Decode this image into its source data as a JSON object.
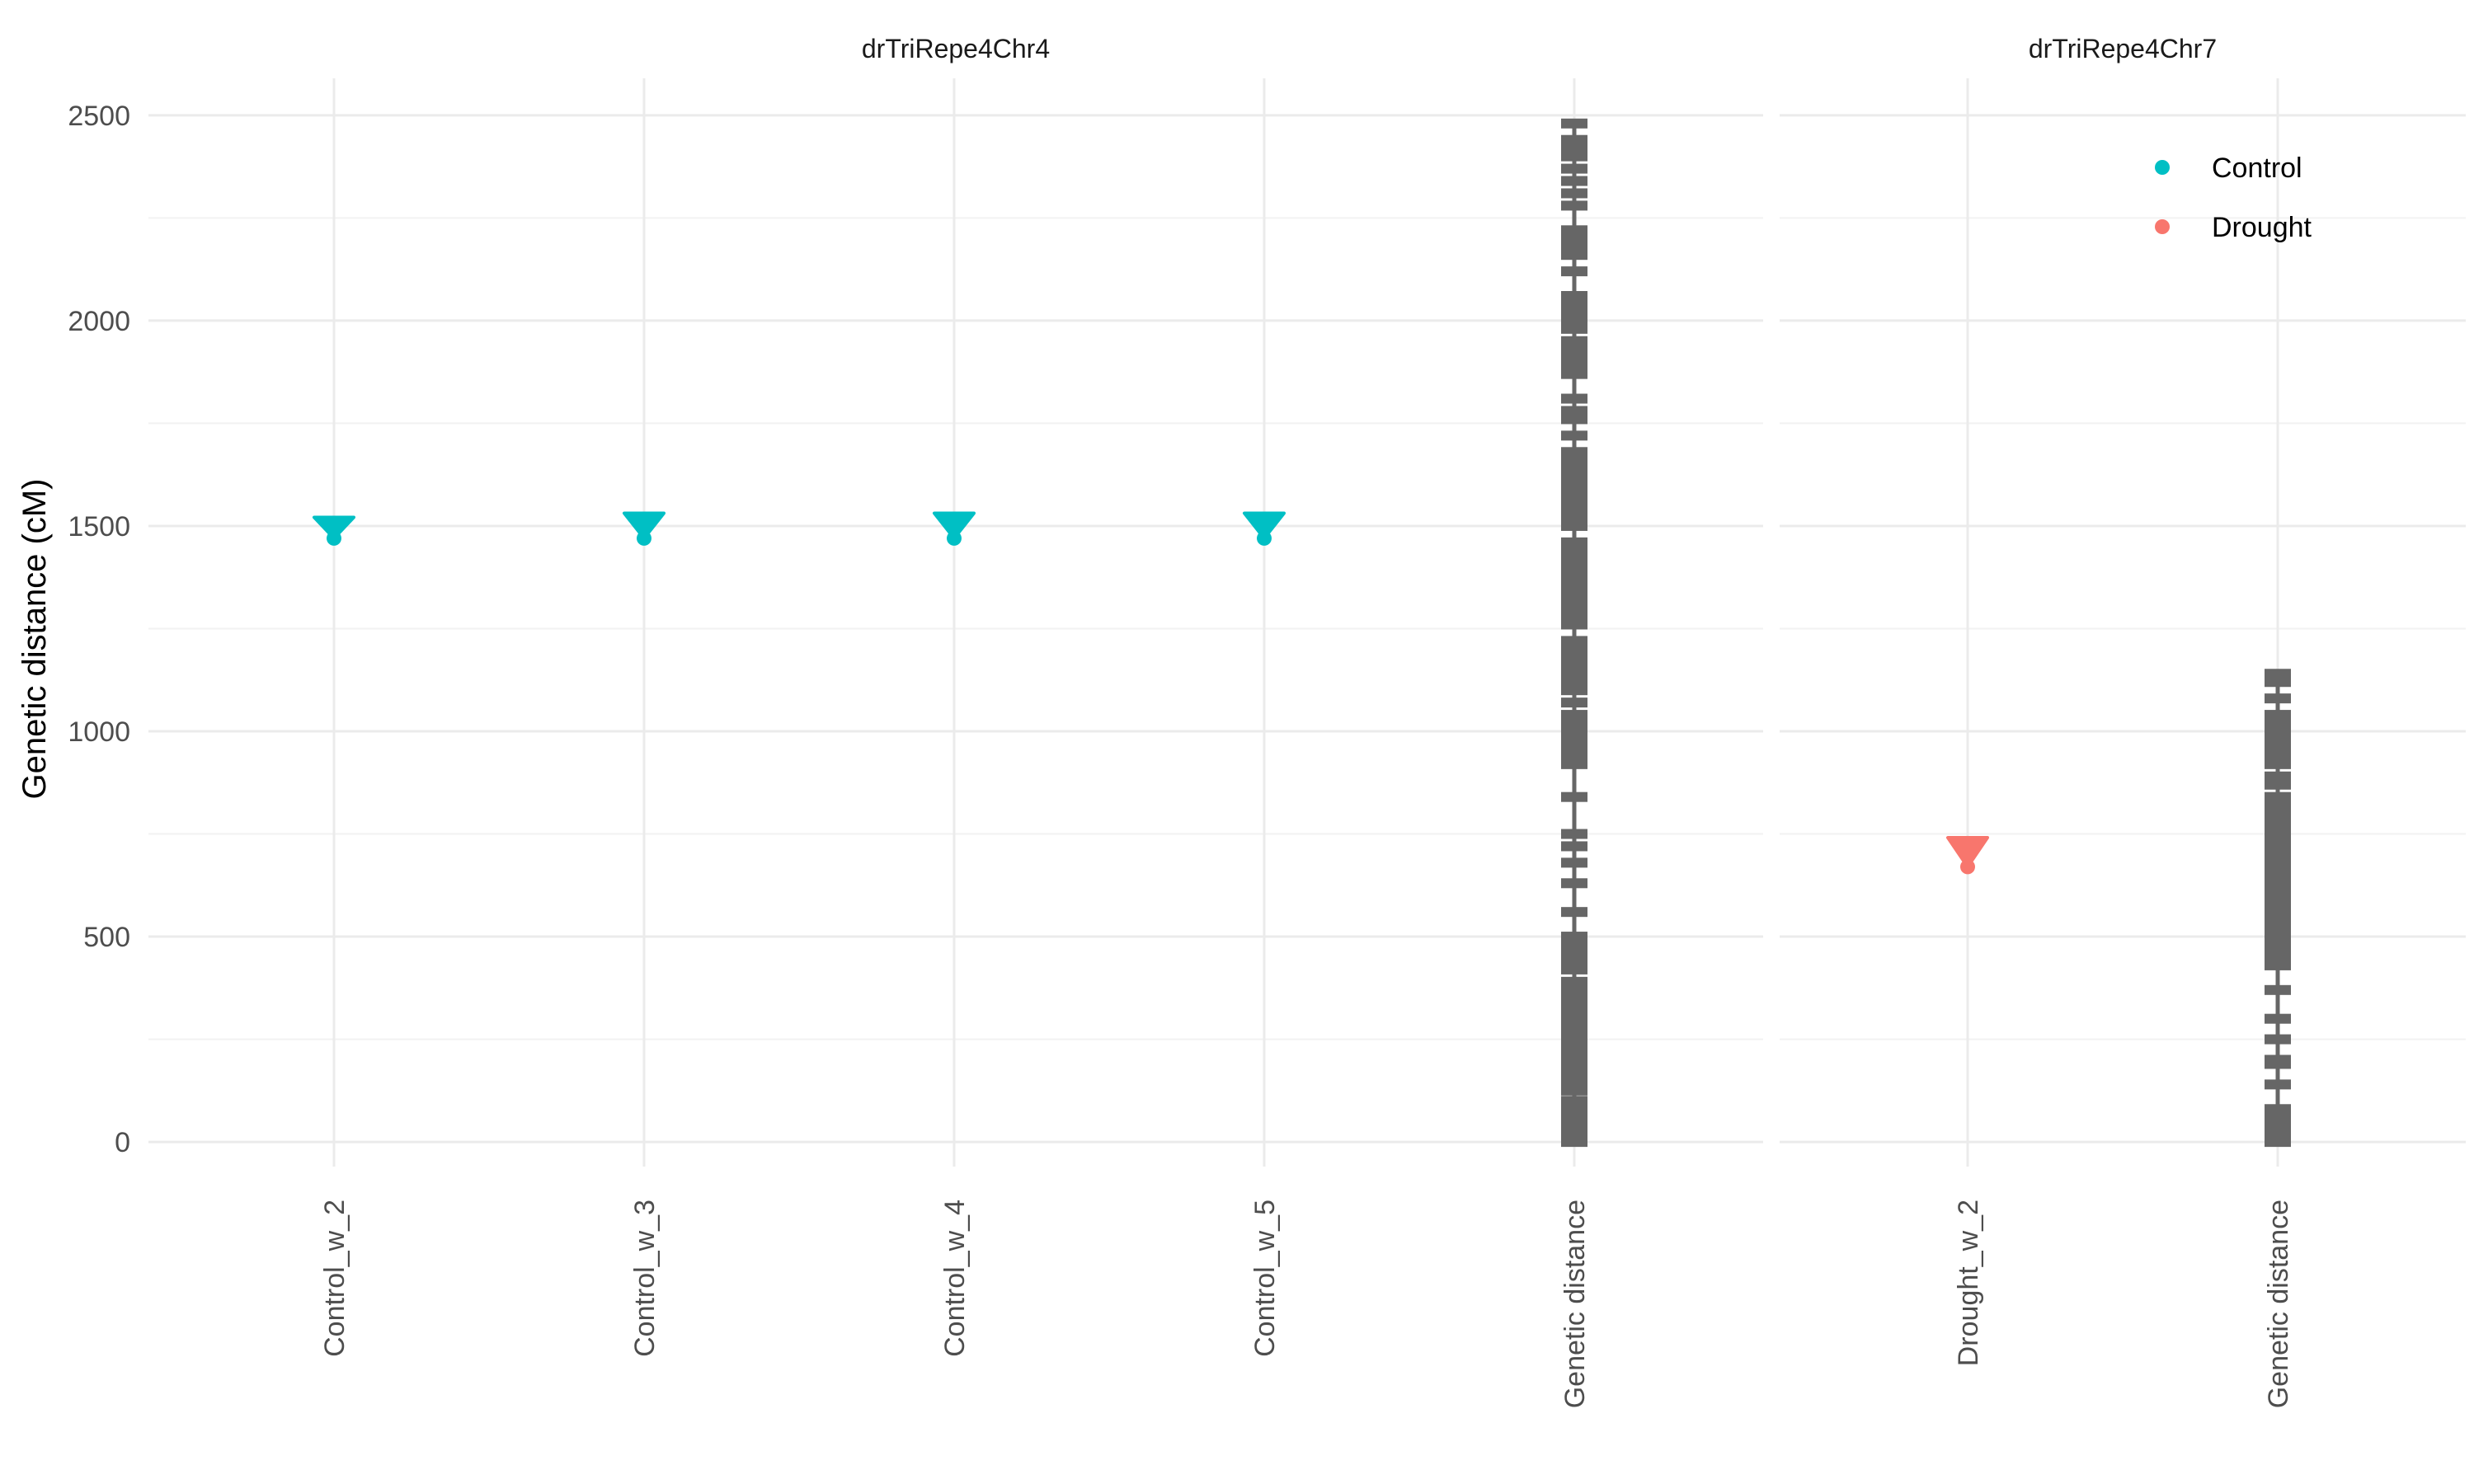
{
  "chart_data": {
    "type": "scatter",
    "ylabel": "Genetic distance (cM)",
    "ylim": [
      -60,
      2590
    ],
    "yticks": [
      0,
      500,
      1000,
      1500,
      2000,
      2500
    ],
    "grid": true,
    "legend": {
      "placement": "top-right",
      "entries": [
        {
          "label": "Control",
          "color": "#00BFC4"
        },
        {
          "label": "Drought",
          "color": "#F8766D"
        }
      ]
    },
    "map_color": "#666666",
    "panels": [
      {
        "title": "drTriRepe4Chr4",
        "categories": [
          "Control_w_2",
          "Control_w_3",
          "Control_w_4",
          "Control_w_5",
          "Genetic distance"
        ],
        "qtl": [
          {
            "category": "Control_w_2",
            "group": "Control",
            "peak": 1470,
            "top": 1515
          },
          {
            "category": "Control_w_3",
            "group": "Control",
            "peak": 1470,
            "top": 1525
          },
          {
            "category": "Control_w_4",
            "group": "Control",
            "peak": 1470,
            "top": 1525
          },
          {
            "category": "Control_w_5",
            "group": "Control",
            "peak": 1470,
            "top": 1525
          }
        ],
        "map": {
          "category": "Genetic distance",
          "min": 0,
          "max": 2490,
          "markers": [
            0,
            10,
            20,
            30,
            40,
            50,
            60,
            80,
            100,
            125,
            140,
            150,
            160,
            170,
            180,
            190,
            200,
            210,
            220,
            230,
            240,
            250,
            260,
            270,
            280,
            290,
            300,
            310,
            320,
            330,
            340,
            350,
            370,
            390,
            420,
            440,
            450,
            460,
            470,
            480,
            490,
            500,
            560,
            630,
            680,
            720,
            750,
            840,
            920,
            930,
            940,
            950,
            960,
            970,
            980,
            990,
            1000,
            1010,
            1020,
            1040,
            1070,
            1100,
            1120,
            1140,
            1160,
            1180,
            1200,
            1220,
            1260,
            1280,
            1300,
            1320,
            1340,
            1360,
            1380,
            1400,
            1420,
            1440,
            1460,
            1500,
            1520,
            1540,
            1560,
            1580,
            1600,
            1620,
            1640,
            1660,
            1680,
            1720,
            1760,
            1780,
            1810,
            1870,
            1890,
            1910,
            1930,
            1950,
            1980,
            2000,
            2020,
            2040,
            2060,
            2120,
            2160,
            2180,
            2200,
            2220,
            2280,
            2310,
            2340,
            2370,
            2400,
            2420,
            2440,
            2480
          ]
        }
      },
      {
        "title": "drTriRepe4Chr7",
        "categories": [
          "Drought_w_2",
          "Genetic distance"
        ],
        "qtl": [
          {
            "category": "Drought_w_2",
            "group": "Drought",
            "peak": 670,
            "top": 735
          }
        ],
        "map": {
          "category": "Genetic distance",
          "min": 0,
          "max": 1140,
          "markers": [
            0,
            10,
            20,
            30,
            40,
            50,
            60,
            70,
            80,
            140,
            190,
            200,
            250,
            300,
            370,
            430,
            440,
            450,
            460,
            480,
            500,
            520,
            540,
            560,
            580,
            600,
            620,
            640,
            660,
            680,
            700,
            720,
            740,
            760,
            780,
            800,
            820,
            840,
            870,
            890,
            920,
            940,
            960,
            980,
            1000,
            1020,
            1040,
            1080,
            1120,
            1140
          ]
        }
      }
    ]
  }
}
